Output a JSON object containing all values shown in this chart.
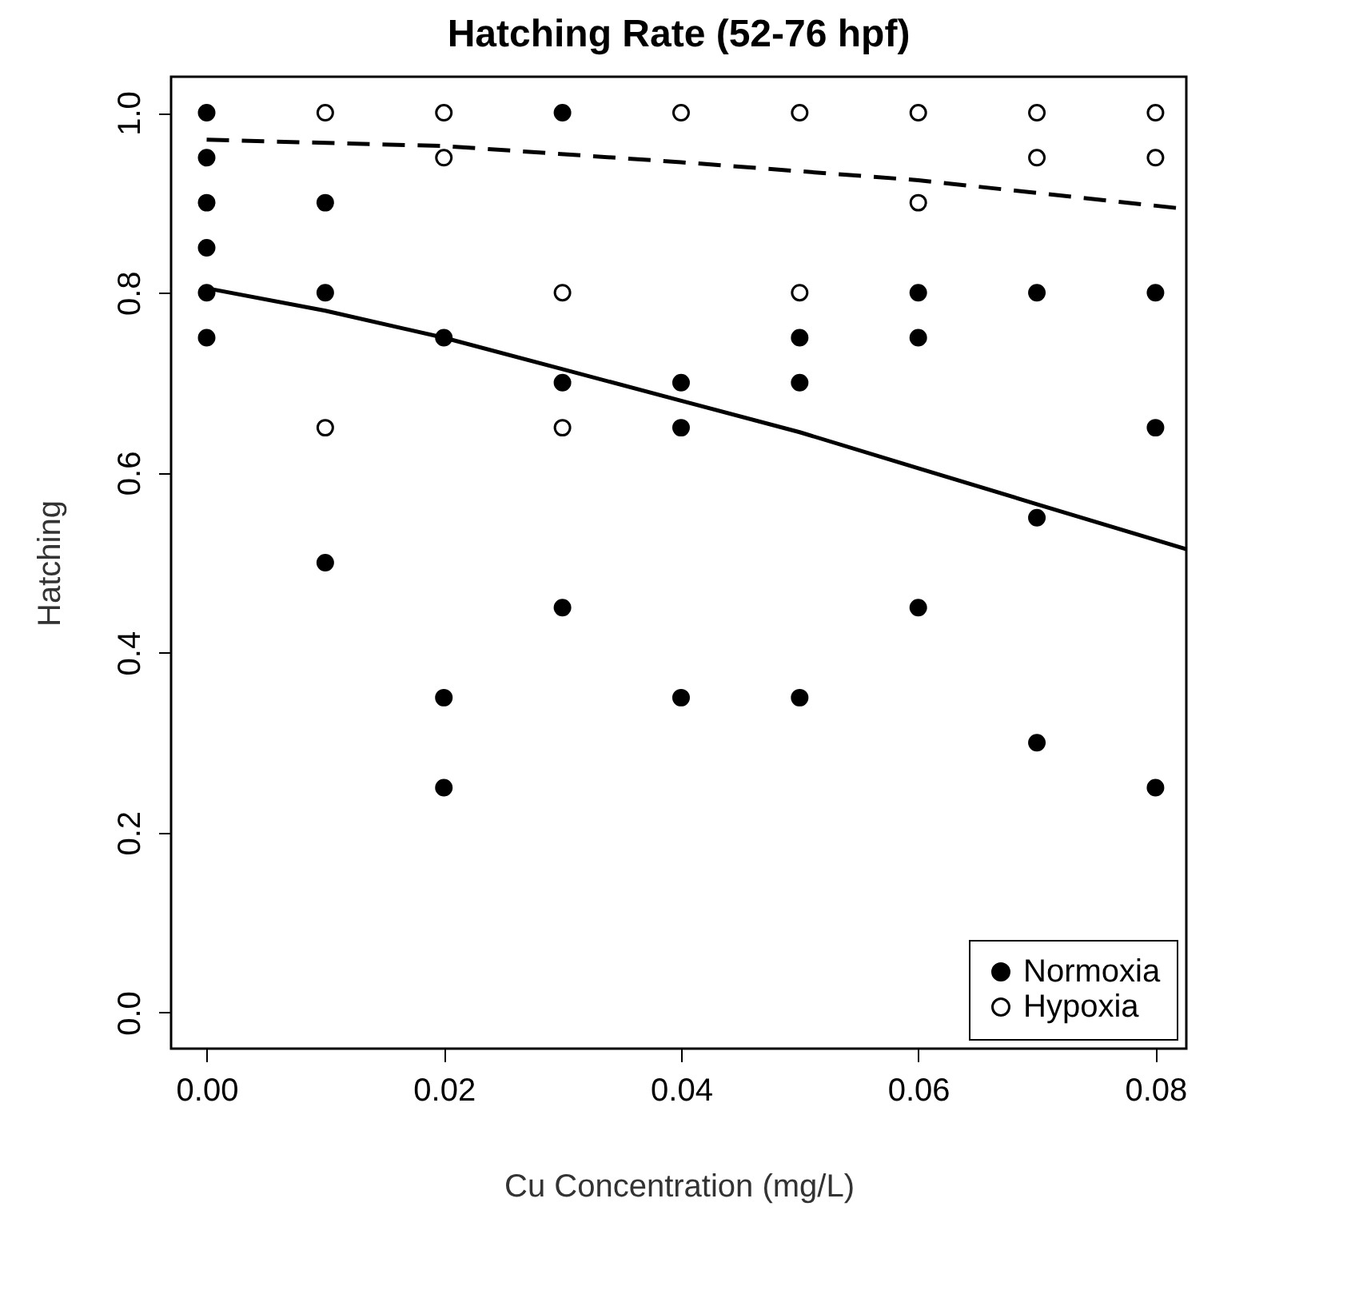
{
  "chart_data": {
    "type": "scatter",
    "title": "Hatching Rate (52-76 hpf)",
    "xlabel": "Cu Concentration (mg/L)",
    "ylabel": "Hatching",
    "xlim": [
      -0.003,
      0.0826
    ],
    "ylim": [
      -0.04,
      1.04
    ],
    "xticks": [
      {
        "value": 0,
        "label": "0.00"
      },
      {
        "value": 0.02,
        "label": "0.02"
      },
      {
        "value": 0.04,
        "label": "0.04"
      },
      {
        "value": 0.06,
        "label": "0.06"
      },
      {
        "value": 0.08,
        "label": "0.08"
      }
    ],
    "yticks": [
      {
        "value": 0,
        "label": "0.0"
      },
      {
        "value": 0.2,
        "label": "0.2"
      },
      {
        "value": 0.4,
        "label": "0.4"
      },
      {
        "value": 0.6,
        "label": "0.6"
      },
      {
        "value": 0.8,
        "label": "0.8"
      },
      {
        "value": 1,
        "label": "1.0"
      }
    ],
    "grid": false,
    "legend": "bottom right",
    "marker": "circle",
    "series": [
      {
        "name": "Normoxia",
        "color": "#000000",
        "x": [
          0,
          0,
          0,
          0,
          0,
          0,
          0.01,
          0.01,
          0.01,
          0.02,
          0.02,
          0.02,
          0.03,
          0.03,
          0.03,
          0.04,
          0.04,
          0.04,
          0.05,
          0.05,
          0.05,
          0.06,
          0.06,
          0.06,
          0.07,
          0.07,
          0.07,
          0.08,
          0.08,
          0.08
        ],
        "values": [
          1.0,
          0.95,
          0.9,
          0.85,
          0.8,
          0.75,
          0.9,
          0.8,
          0.5,
          0.75,
          0.35,
          0.25,
          1.0,
          0.7,
          0.45,
          0.7,
          0.65,
          0.35,
          0.75,
          0.7,
          0.35,
          0.8,
          0.75,
          0.45,
          0.8,
          0.55,
          0.3,
          0.8,
          0.65,
          0.25
        ]
      },
      {
        "name": "Hypoxia",
        "color": "#ffffff",
        "x": [
          0.01,
          0.01,
          0.02,
          0.02,
          0.03,
          0.03,
          0.04,
          0.05,
          0.05,
          0.06,
          0.06,
          0.07,
          0.07,
          0.08,
          0.08
        ],
        "values": [
          1.0,
          0.65,
          1.0,
          0.95,
          0.8,
          0.65,
          1.0,
          1.0,
          0.8,
          1.0,
          0.9,
          1.0,
          0.95,
          1.0,
          0.95
        ]
      },
      {
        "type": "line",
        "color": "#000000",
        "line_style": "solid",
        "marker": "none",
        "x": [
          0,
          0.01,
          0.02,
          0.03,
          0.04,
          0.05,
          0.06,
          0.07,
          0.0826
        ],
        "values": [
          0.805,
          0.78,
          0.75,
          0.715,
          0.68,
          0.645,
          0.605,
          0.565,
          0.515
        ]
      },
      {
        "type": "line",
        "color": "#000000",
        "line_style": "dashed",
        "marker": "none",
        "x": [
          0,
          0.02,
          0.04,
          0.06,
          0.0826
        ],
        "values": [
          0.97,
          0.963,
          0.945,
          0.925,
          0.893
        ]
      }
    ]
  }
}
